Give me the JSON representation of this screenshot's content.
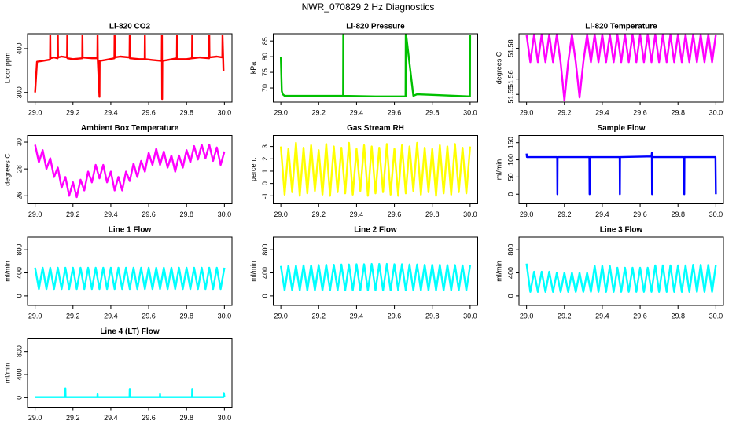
{
  "title": "NWR_070829 2 Hz Diagnostics",
  "chart_data": [
    {
      "type": "line",
      "title": "Li-820 CO2",
      "ylabel": "Licor ppm",
      "color": "#ff0000",
      "xlim": [
        28.96,
        30.04
      ],
      "ylim": [
        278,
        434
      ],
      "xticks": [
        {
          "value": 29,
          "label": "29.0"
        },
        29.2,
        29.4,
        29.6,
        29.8,
        {
          "value": 30,
          "label": "30.0"
        }
      ],
      "yticks": [
        300,
        400
      ],
      "x": [
        29,
        29.01,
        29.04,
        29.079,
        29.08,
        29.081,
        29.1,
        29.119,
        29.12,
        29.121,
        29.14,
        29.169,
        29.17,
        29.171,
        29.2,
        29.249,
        29.25,
        29.251,
        29.3,
        29.329,
        29.33,
        29.331,
        29.34,
        29.341,
        29.37,
        29.419,
        29.42,
        29.421,
        29.45,
        29.499,
        29.5,
        29.501,
        29.55,
        29.579,
        29.58,
        29.581,
        29.62,
        29.669,
        29.67,
        29.671,
        29.672,
        29.7,
        29.749,
        29.75,
        29.751,
        29.8,
        29.829,
        29.83,
        29.831,
        29.87,
        29.919,
        29.92,
        29.921,
        29.96,
        29.989,
        29.99,
        29.995,
        30
      ],
      "values": [
        300,
        370,
        372,
        375,
        430,
        378,
        380,
        378,
        430,
        380,
        382,
        380,
        430,
        378,
        376,
        378,
        430,
        380,
        378,
        378,
        430,
        375,
        290,
        372,
        374,
        378,
        430,
        380,
        382,
        380,
        430,
        378,
        376,
        376,
        430,
        376,
        374,
        372,
        430,
        285,
        372,
        374,
        378,
        430,
        376,
        376,
        378,
        430,
        378,
        380,
        378,
        430,
        380,
        382,
        380,
        430,
        350,
        350
      ]
    },
    {
      "type": "line",
      "title": "Li-820 Pressure",
      "ylabel": "kPa",
      "color": "#00c000",
      "xlim": [
        28.96,
        30.04
      ],
      "ylim": [
        65.5,
        87.3
      ],
      "xticks": [
        {
          "value": 29,
          "label": "29.0"
        },
        29.2,
        29.4,
        29.6,
        29.8,
        {
          "value": 30,
          "label": "30.0"
        }
      ],
      "yticks": [
        70,
        75,
        80,
        85
      ],
      "x": [
        29,
        29.005,
        29.01,
        29.02,
        29.329,
        29.33,
        29.331,
        29.5,
        29.659,
        29.66,
        29.661,
        29.662,
        29.7,
        29.72,
        29.8,
        29.999,
        30
      ],
      "values": [
        80,
        69,
        68,
        67.5,
        67.5,
        87,
        67.5,
        67.3,
        67.3,
        87,
        67.5,
        87,
        67.5,
        68,
        67.8,
        67.3,
        87
      ]
    },
    {
      "type": "line",
      "title": "Li-820 Temperature",
      "ylabel": "degrees C",
      "color": "#ff00ff",
      "xlim": [
        28.96,
        30.04
      ],
      "ylim": [
        51.545,
        51.5895
      ],
      "xticks": [
        {
          "value": 29,
          "label": "29.0"
        },
        29.2,
        29.4,
        29.6,
        29.8,
        {
          "value": 30,
          "label": "30.0"
        }
      ],
      "yticks": [
        51.55,
        51.56,
        51.58
      ],
      "x": [
        29,
        29.02,
        29.04,
        29.06,
        29.08,
        29.1,
        29.12,
        29.14,
        29.16,
        29.18,
        29.2,
        29.22,
        29.24,
        29.26,
        29.28,
        29.3,
        29.32,
        29.34,
        29.36,
        29.38,
        29.4,
        29.42,
        29.44,
        29.46,
        29.48,
        29.5,
        29.52,
        29.54,
        29.56,
        29.58,
        29.6,
        29.62,
        29.64,
        29.66,
        29.68,
        29.7,
        29.72,
        29.74,
        29.76,
        29.78,
        29.8,
        29.82,
        29.84,
        29.86,
        29.88,
        29.9,
        29.92,
        29.94,
        29.96,
        29.98,
        30
      ],
      "values": [
        51.589,
        51.571,
        51.589,
        51.571,
        51.589,
        51.571,
        51.589,
        51.571,
        51.589,
        51.571,
        51.546,
        51.571,
        51.589,
        51.571,
        51.548,
        51.571,
        51.589,
        51.571,
        51.589,
        51.571,
        51.589,
        51.571,
        51.589,
        51.571,
        51.589,
        51.571,
        51.589,
        51.571,
        51.589,
        51.571,
        51.589,
        51.571,
        51.589,
        51.571,
        51.589,
        51.571,
        51.589,
        51.571,
        51.589,
        51.571,
        51.589,
        51.571,
        51.589,
        51.571,
        51.589,
        51.571,
        51.589,
        51.571,
        51.589,
        51.571,
        51.589
      ]
    },
    {
      "type": "line",
      "title": "Ambient Box Temperature",
      "ylabel": "degrees C",
      "color": "#ff00ff",
      "xlim": [
        28.96,
        30.04
      ],
      "ylim": [
        25.4,
        30.5
      ],
      "xticks": [
        {
          "value": 29,
          "label": "29.0"
        },
        29.2,
        29.4,
        29.6,
        29.8,
        {
          "value": 30,
          "label": "30.0"
        }
      ],
      "yticks": [
        26,
        28,
        30
      ],
      "x": [
        29,
        29.02,
        29.04,
        29.06,
        29.08,
        29.1,
        29.12,
        29.14,
        29.16,
        29.18,
        29.2,
        29.22,
        29.24,
        29.26,
        29.28,
        29.3,
        29.32,
        29.34,
        29.36,
        29.38,
        29.4,
        29.42,
        29.44,
        29.46,
        29.48,
        29.5,
        29.52,
        29.54,
        29.56,
        29.58,
        29.6,
        29.62,
        29.64,
        29.66,
        29.68,
        29.7,
        29.72,
        29.74,
        29.76,
        29.78,
        29.8,
        29.82,
        29.84,
        29.86,
        29.88,
        29.9,
        29.92,
        29.94,
        29.96,
        29.98,
        30
      ],
      "values": [
        29.8,
        28.5,
        29.4,
        28.0,
        28.8,
        27.4,
        28.1,
        26.6,
        27.4,
        26.0,
        27.0,
        25.9,
        27.2,
        26.4,
        27.8,
        27.0,
        28.3,
        27.3,
        28.3,
        27.0,
        27.8,
        26.4,
        27.4,
        26.4,
        27.8,
        27.1,
        28.4,
        27.4,
        28.6,
        27.8,
        29.2,
        28.3,
        29.5,
        28.3,
        29.3,
        28.1,
        29.0,
        27.8,
        29.0,
        28.1,
        29.4,
        28.5,
        29.7,
        28.7,
        29.8,
        28.8,
        29.8,
        28.6,
        29.6,
        28.3,
        29.3
      ]
    },
    {
      "type": "line",
      "title": "Gas Stream RH",
      "ylabel": "percent",
      "color": "#ffff00",
      "xlim": [
        28.96,
        30.04
      ],
      "ylim": [
        -1.65,
        3.9
      ],
      "xticks": [
        {
          "value": 29,
          "label": "29.0"
        },
        29.2,
        29.4,
        29.6,
        29.8,
        {
          "value": 30,
          "label": "30.0"
        }
      ],
      "yticks": [
        -1,
        0,
        1,
        2,
        3
      ],
      "x": [
        29,
        29.02,
        29.04,
        29.06,
        29.08,
        29.1,
        29.12,
        29.14,
        29.16,
        29.18,
        29.2,
        29.22,
        29.24,
        29.26,
        29.28,
        29.3,
        29.32,
        29.34,
        29.36,
        29.38,
        29.4,
        29.42,
        29.44,
        29.46,
        29.48,
        29.5,
        29.52,
        29.54,
        29.56,
        29.58,
        29.6,
        29.62,
        29.64,
        29.66,
        29.68,
        29.7,
        29.72,
        29.74,
        29.76,
        29.78,
        29.8,
        29.82,
        29.84,
        29.86,
        29.88,
        29.9,
        29.92,
        29.94,
        29.96,
        29.98,
        30
      ],
      "values": [
        3.0,
        -0.9,
        2.8,
        -0.7,
        3.3,
        -1.0,
        2.9,
        -0.8,
        3.1,
        -0.6,
        2.7,
        -0.9,
        3.2,
        -1.0,
        3.0,
        -0.7,
        2.9,
        -0.8,
        3.3,
        -0.9,
        2.8,
        -0.6,
        3.1,
        -1.0,
        3.0,
        -0.8,
        2.9,
        -0.7,
        3.2,
        -0.9,
        2.8,
        -1.0,
        3.1,
        -0.8,
        3.0,
        -0.6,
        3.3,
        -0.9,
        2.9,
        -0.7,
        2.8,
        -1.0,
        3.1,
        -0.8,
        3.0,
        -0.9,
        3.2,
        -0.7,
        2.9,
        -0.8,
        3.0
      ]
    },
    {
      "type": "line",
      "title": "Sample Flow",
      "ylabel": "ml/min",
      "color": "#0000ff",
      "xlim": [
        28.96,
        30.04
      ],
      "ylim": [
        -28,
        171
      ],
      "xticks": [
        {
          "value": 29,
          "label": "29.0"
        },
        29.2,
        29.4,
        29.6,
        29.8,
        {
          "value": 30,
          "label": "30.0"
        }
      ],
      "yticks": [
        0,
        50,
        100,
        150
      ],
      "x": [
        29,
        29.002,
        29.16,
        29.162,
        29.163,
        29.164,
        29.33,
        29.332,
        29.333,
        29.334,
        29.49,
        29.492,
        29.493,
        29.494,
        29.66,
        29.662,
        29.663,
        29.664,
        29.83,
        29.832,
        29.833,
        29.834,
        29.998,
        30
      ],
      "values": [
        118,
        108,
        108,
        105,
        0,
        108,
        108,
        105,
        0,
        108,
        108,
        105,
        0,
        108,
        110,
        120,
        0,
        108,
        108,
        105,
        0,
        108,
        108,
        0
      ]
    },
    {
      "type": "line",
      "title": "Line 1 Flow",
      "ylabel": "ml/min",
      "color": "#00ffff",
      "xlim": [
        28.96,
        30.04
      ],
      "ylim": [
        -165,
        1020
      ],
      "xticks": [
        {
          "value": 29,
          "label": "29.0"
        },
        29.2,
        29.4,
        29.6,
        29.8,
        {
          "value": 30,
          "label": "30.0"
        }
      ],
      "yticks": [
        0,
        400,
        800
      ],
      "x": [
        29,
        29.02,
        29.04,
        29.06,
        29.08,
        29.1,
        29.12,
        29.14,
        29.16,
        29.18,
        29.2,
        29.22,
        29.24,
        29.26,
        29.28,
        29.3,
        29.32,
        29.34,
        29.36,
        29.38,
        29.4,
        29.42,
        29.44,
        29.46,
        29.48,
        29.5,
        29.52,
        29.54,
        29.56,
        29.58,
        29.6,
        29.62,
        29.64,
        29.66,
        29.68,
        29.7,
        29.72,
        29.74,
        29.76,
        29.78,
        29.8,
        29.82,
        29.84,
        29.86,
        29.88,
        29.9,
        29.92,
        29.94,
        29.96,
        29.98,
        30
      ],
      "values": [
        490,
        120,
        490,
        120,
        490,
        120,
        490,
        120,
        490,
        120,
        490,
        120,
        490,
        120,
        490,
        120,
        490,
        120,
        490,
        120,
        490,
        120,
        490,
        120,
        490,
        120,
        490,
        120,
        490,
        120,
        490,
        120,
        490,
        120,
        490,
        120,
        490,
        120,
        490,
        120,
        490,
        120,
        490,
        120,
        490,
        120,
        490,
        120,
        490,
        120,
        490
      ]
    },
    {
      "type": "line",
      "title": "Line 2 Flow",
      "ylabel": "ml/min",
      "color": "#00ffff",
      "xlim": [
        28.96,
        30.04
      ],
      "ylim": [
        -165,
        1020
      ],
      "xticks": [
        {
          "value": 29,
          "label": "29.0"
        },
        29.2,
        29.4,
        29.6,
        29.8,
        {
          "value": 30,
          "label": "30.0"
        }
      ],
      "yticks": [
        0,
        400,
        800
      ],
      "x": [
        29,
        29.02,
        29.04,
        29.06,
        29.08,
        29.1,
        29.12,
        29.14,
        29.16,
        29.18,
        29.2,
        29.22,
        29.24,
        29.26,
        29.28,
        29.3,
        29.32,
        29.34,
        29.36,
        29.38,
        29.4,
        29.42,
        29.44,
        29.46,
        29.48,
        29.5,
        29.52,
        29.54,
        29.56,
        29.58,
        29.6,
        29.62,
        29.64,
        29.66,
        29.68,
        29.7,
        29.72,
        29.74,
        29.76,
        29.78,
        29.8,
        29.82,
        29.84,
        29.86,
        29.88,
        29.9,
        29.92,
        29.94,
        29.96,
        29.98,
        30
      ],
      "values": [
        520,
        100,
        525,
        100,
        525,
        100,
        530,
        100,
        530,
        100,
        535,
        100,
        540,
        100,
        540,
        100,
        545,
        100,
        545,
        100,
        550,
        100,
        550,
        100,
        555,
        100,
        555,
        100,
        555,
        100,
        550,
        100,
        550,
        100,
        545,
        100,
        545,
        100,
        540,
        100,
        540,
        100,
        540,
        100,
        535,
        100,
        535,
        100,
        530,
        100,
        530
      ]
    },
    {
      "type": "line",
      "title": "Line 3 Flow",
      "ylabel": "ml/min",
      "color": "#00ffff",
      "xlim": [
        28.96,
        30.04
      ],
      "ylim": [
        -165,
        1020
      ],
      "xticks": [
        {
          "value": 29,
          "label": "29.0"
        },
        29.2,
        29.4,
        29.6,
        29.8,
        {
          "value": 30,
          "label": "30.0"
        }
      ],
      "yticks": [
        0,
        400,
        800
      ],
      "x": [
        29,
        29.02,
        29.04,
        29.06,
        29.08,
        29.1,
        29.12,
        29.14,
        29.16,
        29.18,
        29.2,
        29.22,
        29.24,
        29.26,
        29.28,
        29.3,
        29.32,
        29.34,
        29.36,
        29.38,
        29.4,
        29.42,
        29.44,
        29.46,
        29.48,
        29.5,
        29.52,
        29.54,
        29.56,
        29.58,
        29.6,
        29.62,
        29.64,
        29.66,
        29.68,
        29.7,
        29.72,
        29.74,
        29.76,
        29.78,
        29.8,
        29.82,
        29.84,
        29.86,
        29.88,
        29.9,
        29.92,
        29.94,
        29.96,
        29.98,
        30
      ],
      "values": [
        560,
        70,
        420,
        70,
        420,
        70,
        420,
        70,
        400,
        70,
        400,
        70,
        400,
        70,
        400,
        70,
        400,
        70,
        520,
        70,
        520,
        70,
        520,
        70,
        490,
        70,
        490,
        70,
        490,
        70,
        490,
        70,
        490,
        70,
        530,
        70,
        530,
        70,
        530,
        70,
        530,
        70,
        530,
        70,
        540,
        70,
        540,
        70,
        540,
        70,
        540
      ]
    },
    {
      "type": "line",
      "title": "Line 4 (LT) Flow",
      "ylabel": "ml/min",
      "color": "#00ffff",
      "xlim": [
        28.96,
        30.04
      ],
      "ylim": [
        -165,
        1020
      ],
      "xticks": [
        {
          "value": 29,
          "label": "29.0"
        },
        29.2,
        29.4,
        29.6,
        29.8,
        {
          "value": 30,
          "label": "30.0"
        }
      ],
      "yticks": [
        0,
        400,
        800
      ],
      "x": [
        29,
        29.159,
        29.16,
        29.161,
        29.329,
        29.33,
        29.331,
        29.499,
        29.5,
        29.501,
        29.659,
        29.66,
        29.661,
        29.829,
        29.83,
        29.831,
        29.995,
        29.997,
        30
      ],
      "values": [
        10,
        10,
        160,
        10,
        10,
        60,
        10,
        10,
        150,
        10,
        10,
        60,
        10,
        10,
        150,
        10,
        10,
        80,
        10
      ]
    }
  ]
}
